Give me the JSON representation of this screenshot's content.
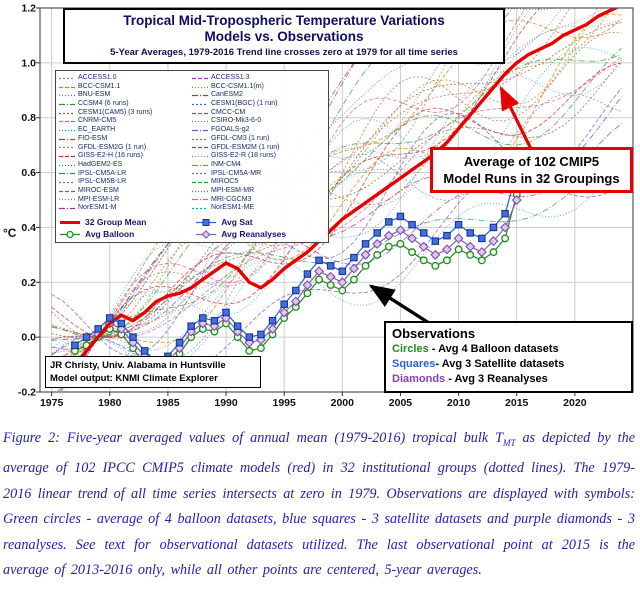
{
  "figure": {
    "title_line1": "Tropical Mid-Tropospheric Temperature Variations",
    "title_line2": "Models vs. Observations",
    "subtitle": "5-Year Averages, 1979-2016 Trend line crosses zero at 1979 for all time series"
  },
  "legend": {
    "models_col1": [
      "ACCESS1.0",
      "BCC-CSM1.1",
      "BNU-ESM",
      "CCSM4 (6 runs)",
      "CESM1(CAM5) (3 runs)",
      "CNRM-CM5",
      "EC_EARTH",
      "FIO-ESM",
      "GFDL-ESM2G (1 run)",
      "GISS-E2-H (16 runs)",
      "HadGEM2-ES",
      "IPSL-CM5A-LR",
      "IPSL-CM5B-LR",
      "MIROC-ESM",
      "MPI-ESM-LR",
      "NorESM1-M"
    ],
    "models_col2": [
      "ACCESS1.3",
      "BCC-CSM1.1(m)",
      "CanESM2",
      "CESM1(BGC) (1 run)",
      "CMCC-CM",
      "CSIRO-Mk3-6-0",
      "FGOALS-g2",
      "GFDL-CM3 (1 run)",
      "GFDL-ESM2M (1 run)",
      "GISS-E2-R (18 runs)",
      "INM-CM4",
      "IPSL-CM5A-MR",
      "MIROC5",
      "MPI-ESM-MR",
      "MRI-CGCM3",
      "NorESM1-ME"
    ],
    "main_series": [
      {
        "label": "32 Group Mean",
        "style": "thick-line",
        "color": "#e80000"
      },
      {
        "label": "Avg Sat",
        "style": "square",
        "color": "#2b5fd9"
      },
      {
        "label": "Avg Balloon",
        "style": "circle",
        "color": "#1f8a1f"
      },
      {
        "label": "Avg Reanalyses",
        "style": "diamond",
        "color": "#8a5fb5"
      }
    ]
  },
  "annotations": {
    "cmip5_box_line1": "Average of 102 CMIP5",
    "cmip5_box_line2": "Model Runs in 32 Groupings",
    "observations": {
      "title": "Observations",
      "items": [
        {
          "prefix": "Circles",
          "rest": " - Avg 4 Balloon datasets",
          "color": "#1f8a1f"
        },
        {
          "prefix": "Squares",
          "rest": "- Avg 3 Satellite datasets",
          "color": "#2b5fd9"
        },
        {
          "prefix": "Diamonds",
          "rest": " - Avg 3 Reanalyses",
          "color": "#8a3fb0"
        }
      ]
    },
    "credit_line1": "JR Christy, Univ. Alabama in Huntsville",
    "credit_line2": "Model output: KNMI Climate Explorer"
  },
  "caption": {
    "seg1": "Figure 2: Five-year averaged values of annual mean (1979-2016) tropical bulk T",
    "sub": "MT",
    "seg2": " as depicted by the average of 102 IPCC CMIP5 climate models (red) in 32 institutional groups (dotted lines).  The 1979-2016 linear trend of all time series intersects at zero in 1979.  Observations are displayed with symbols:  Green circles - average of 4 balloon datasets, blue squares - 3 satellite datasets and purple diamonds - 3 reanalyses.  See text for observational datasets utilized.  The last observational point at 2015 is the average of 2013-2016 only, while all other points are centered, 5-year averages."
  },
  "chart_data": {
    "type": "line",
    "title": "Tropical Mid-Tropospheric Temperature Variations Models vs. Observations",
    "subtitle": "5-Year Averages, 1979-2016 Trend line crosses zero at 1979 for all time series",
    "xlabel": "",
    "ylabel": "°C",
    "xlim": [
      1974,
      2025
    ],
    "ylim": [
      -0.2,
      1.2
    ],
    "x_ticks": [
      1975,
      1980,
      1985,
      1990,
      1995,
      2000,
      2005,
      2010,
      2015,
      2020
    ],
    "y_ticks": [
      1.2,
      1.0,
      0.8,
      0.6,
      0.4,
      0.2,
      0.0,
      -0.2
    ],
    "y_tick_labels": [
      "1.2",
      "1.0",
      "0.8",
      "0.6",
      "0.4",
      "0.2",
      "0.0",
      "-0.2"
    ],
    "grid": true,
    "legend_position": "upper-left",
    "series": [
      {
        "name": "32 Group Mean",
        "role": "model-mean",
        "color": "#e80000",
        "line_width": 3.4,
        "x_start": 1977,
        "x_step": 1,
        "values": [
          -0.1,
          -0.05,
          0.0,
          0.05,
          0.08,
          0.06,
          0.09,
          0.13,
          0.15,
          0.16,
          0.18,
          0.21,
          0.24,
          0.27,
          0.25,
          0.2,
          0.18,
          0.21,
          0.25,
          0.28,
          0.31,
          0.35,
          0.39,
          0.43,
          0.46,
          0.49,
          0.52,
          0.55,
          0.58,
          0.61,
          0.64,
          0.67,
          0.71,
          0.76,
          0.81,
          0.86,
          0.91,
          0.96,
          1.0,
          1.03,
          1.05,
          1.07,
          1.1,
          1.12,
          1.14,
          1.17,
          1.19,
          1.21
        ]
      },
      {
        "name": "Avg Sat",
        "role": "satellite",
        "color": "#2b5fd9",
        "marker": "square",
        "marker_fill": "#3f6fe0",
        "marker_edge": "#17368f",
        "x_start": 1977,
        "x_step": 1,
        "values": [
          -0.03,
          0.0,
          0.03,
          0.07,
          0.05,
          0.0,
          -0.05,
          -0.09,
          -0.07,
          -0.02,
          0.04,
          0.07,
          0.06,
          0.09,
          0.04,
          0.0,
          0.01,
          0.06,
          0.12,
          0.17,
          0.23,
          0.28,
          0.26,
          0.24,
          0.29,
          0.34,
          0.38,
          0.42,
          0.44,
          0.41,
          0.38,
          0.35,
          0.37,
          0.41,
          0.38,
          0.36,
          0.4,
          0.45,
          0.6
        ]
      },
      {
        "name": "Avg Balloon",
        "role": "balloon",
        "color": "#1f8a1f",
        "marker": "circle",
        "marker_fill": "#eef6e8",
        "marker_edge": "#1f8a1f",
        "x_start": 1977,
        "x_step": 1,
        "values": [
          -0.05,
          -0.03,
          0.0,
          0.03,
          0.01,
          -0.04,
          -0.1,
          -0.14,
          -0.11,
          -0.06,
          0.0,
          0.03,
          0.02,
          0.05,
          0.0,
          -0.05,
          -0.04,
          0.01,
          0.07,
          0.11,
          0.16,
          0.21,
          0.19,
          0.17,
          0.21,
          0.26,
          0.3,
          0.33,
          0.34,
          0.31,
          0.28,
          0.26,
          0.28,
          0.32,
          0.3,
          0.28,
          0.31,
          0.36,
          0.52
        ]
      },
      {
        "name": "Avg Reanalyses",
        "role": "reanalyses",
        "color": "#8a5fb5",
        "marker": "diamond",
        "marker_fill": "#dcc8ee",
        "marker_edge": "#7a4fa5",
        "x_start": 1979,
        "x_step": 1,
        "values": [
          0.01,
          0.05,
          0.03,
          -0.02,
          -0.07,
          -0.11,
          -0.09,
          -0.04,
          0.02,
          0.05,
          0.04,
          0.07,
          0.02,
          -0.02,
          -0.01,
          0.03,
          0.09,
          0.13,
          0.19,
          0.24,
          0.22,
          0.2,
          0.25,
          0.3,
          0.34,
          0.37,
          0.39,
          0.36,
          0.33,
          0.3,
          0.32,
          0.36,
          0.33,
          0.31,
          0.35,
          0.4,
          0.5
        ]
      }
    ],
    "background_models": {
      "count": 32,
      "note": "32 CMIP5 institutional-group means (102 runs), dotted/dashed thin lines, all trend lines cross zero at 1979, spreading to roughly 0.55-1.6 °C by 2024",
      "x_range": [
        1975,
        2024
      ],
      "zero_year": 1979,
      "final_value_range": [
        0.55,
        1.6
      ],
      "dash_patterns": [
        "2,2",
        "4,2",
        "1,2",
        "6,2,1,2"
      ],
      "palette": [
        "#888888",
        "#e07b00",
        "#3a86d4",
        "#2a9d2a",
        "#8b5a2b",
        "#e05c9a",
        "#00a8b0",
        "#8a3fb0",
        "#b8860b",
        "#d42a2a",
        "#4668b0",
        "#2e8b6e",
        "#c06030",
        "#6a5ad0",
        "#708090",
        "#b03070"
      ]
    }
  }
}
